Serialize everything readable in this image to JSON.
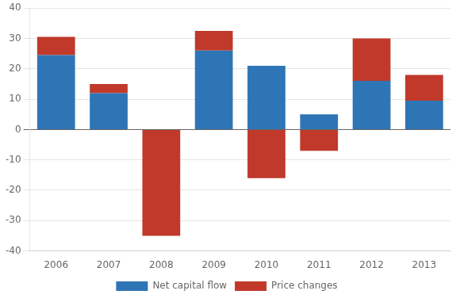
{
  "chart_data": {
    "type": "bar",
    "stacked": true,
    "categories": [
      "2006",
      "2007",
      "2008",
      "2009",
      "2010",
      "2011",
      "2012",
      "2013"
    ],
    "series": [
      {
        "name": "Net capital flow",
        "color": "#2E75B6",
        "values": [
          24.5,
          12.0,
          0.0,
          26.0,
          21.0,
          5.0,
          16.0,
          9.5
        ]
      },
      {
        "name": "Price changes",
        "color": "#C0392B",
        "values": [
          6.0,
          3.0,
          -35.0,
          6.5,
          -16.0,
          -7.0,
          14.0,
          8.5
        ]
      }
    ],
    "ylim": [
      -40,
      40
    ],
    "yticks": [
      -40,
      -30,
      -20,
      -10,
      0,
      10,
      20,
      30,
      40
    ],
    "grid": true,
    "legend": "bottom"
  }
}
